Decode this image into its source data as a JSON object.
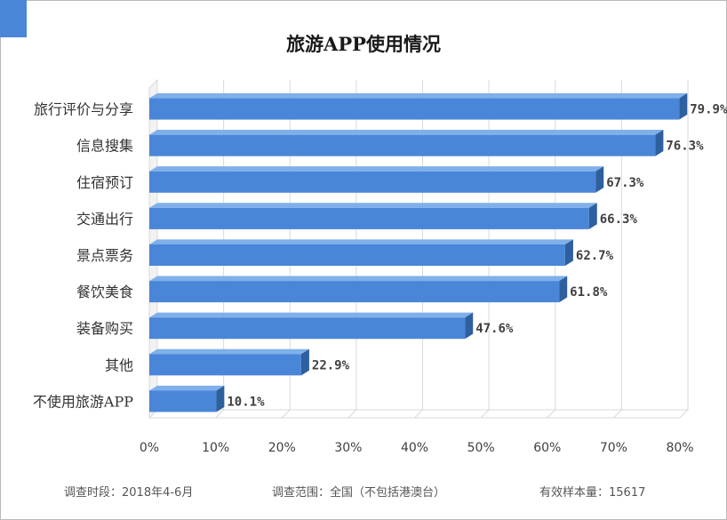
{
  "chart_data": {
    "type": "bar",
    "orientation": "horizontal",
    "style": "3d",
    "title": "旅游APP使用情况",
    "categories": [
      "旅行评价与分享",
      "信息搜集",
      "住宿预订",
      "交通出行",
      "景点票务",
      "餐饮美食",
      "装备购买",
      "其他",
      "不使用旅游APP"
    ],
    "values": [
      79.9,
      76.3,
      67.3,
      66.3,
      62.7,
      61.8,
      47.6,
      22.9,
      10.1
    ],
    "value_labels": [
      "79.9%",
      "76.3%",
      "67.3%",
      "66.3%",
      "62.7%",
      "61.8%",
      "47.6%",
      "22.9%",
      "10.1%"
    ],
    "xlim": [
      0,
      80
    ],
    "x_ticks": [
      "0%",
      "10%",
      "20%",
      "30%",
      "40%",
      "50%",
      "60%",
      "70%",
      "80%"
    ],
    "x_tick_values": [
      0,
      10,
      20,
      30,
      40,
      50,
      60,
      70,
      80
    ],
    "grid": true,
    "bar_color": "#4a86d8",
    "bar_side_color": "#2e5f9e",
    "bar_top_color": "#7fb0ea"
  },
  "footer": {
    "period": "调查时段：2018年4-6月",
    "scope": "调查范围：全国（不包括港澳台）",
    "sample": "有效样本量：15617"
  },
  "accent_color": "#4a86d8"
}
